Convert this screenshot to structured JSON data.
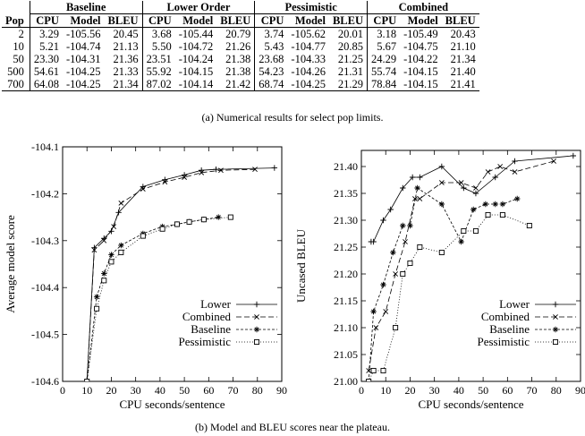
{
  "table": {
    "groups": [
      "Baseline",
      "Lower Order",
      "Pessimistic",
      "Combined"
    ],
    "pop_header": "Pop",
    "sub_headers": [
      "CPU",
      "Model",
      "BLEU"
    ],
    "rows": [
      {
        "pop": "2",
        "cells": [
          "3.29",
          "-105.56",
          "20.45",
          "3.68",
          "-105.44",
          "20.79",
          "3.74",
          "-105.62",
          "20.01",
          "3.18",
          "-105.49",
          "20.43"
        ]
      },
      {
        "pop": "10",
        "cells": [
          "5.21",
          "-104.74",
          "21.13",
          "5.50",
          "-104.72",
          "21.26",
          "5.43",
          "-104.77",
          "20.85",
          "5.67",
          "-104.75",
          "21.10"
        ]
      },
      {
        "pop": "50",
        "cells": [
          "23.30",
          "-104.31",
          "21.36",
          "23.51",
          "-104.24",
          "21.38",
          "23.68",
          "-104.33",
          "21.25",
          "24.29",
          "-104.22",
          "21.34"
        ]
      },
      {
        "pop": "500",
        "cells": [
          "54.61",
          "-104.25",
          "21.33",
          "55.92",
          "-104.15",
          "21.38",
          "54.23",
          "-104.26",
          "21.31",
          "55.74",
          "-104.15",
          "21.40"
        ]
      },
      {
        "pop": "700",
        "cells": [
          "64.08",
          "-104.25",
          "21.34",
          "87.02",
          "-104.14",
          "21.42",
          "68.74",
          "-104.25",
          "21.29",
          "78.84",
          "-104.15",
          "21.41"
        ]
      }
    ]
  },
  "caption_a": "(a) Numerical results for select pop limits.",
  "caption_b": "(b) Model and BLEU scores near the plateau.",
  "chart_data": [
    {
      "type": "line",
      "xlabel": "CPU seconds/sentence",
      "ylabel": "Average model score",
      "xlim": [
        0,
        90
      ],
      "ylim": [
        -104.6,
        -104.1
      ],
      "xticks": [
        0,
        10,
        20,
        30,
        40,
        50,
        60,
        70,
        80,
        90
      ],
      "yticks": [
        -104.6,
        -104.5,
        -104.4,
        -104.3,
        -104.2,
        -104.1
      ],
      "legend_position": "bottom-right",
      "series": [
        {
          "name": "Lower",
          "marker": "plus",
          "dash": "",
          "points": [
            [
              10,
              -104.6
            ],
            [
              13,
              -104.315
            ],
            [
              17,
              -104.295
            ],
            [
              20,
              -104.28
            ],
            [
              23,
              -104.24
            ],
            [
              33,
              -104.185
            ],
            [
              42,
              -104.17
            ],
            [
              50,
              -104.16
            ],
            [
              57,
              -104.15
            ],
            [
              63,
              -104.148
            ],
            [
              87,
              -104.145
            ]
          ]
        },
        {
          "name": "Combined",
          "marker": "x",
          "dash": "6,3",
          "points": [
            [
              10,
              -104.6
            ],
            [
              13,
              -104.32
            ],
            [
              17,
              -104.3
            ],
            [
              21,
              -104.27
            ],
            [
              24,
              -104.22
            ],
            [
              33,
              -104.19
            ],
            [
              42,
              -104.175
            ],
            [
              50,
              -104.165
            ],
            [
              57,
              -104.155
            ],
            [
              65,
              -104.15
            ],
            [
              79,
              -104.148
            ]
          ]
        },
        {
          "name": "Baseline",
          "marker": "star",
          "dash": "3,2",
          "points": [
            [
              10,
              -104.6
            ],
            [
              14,
              -104.42
            ],
            [
              17,
              -104.37
            ],
            [
              20,
              -104.33
            ],
            [
              24,
              -104.31
            ],
            [
              33,
              -104.285
            ],
            [
              41,
              -104.27
            ],
            [
              47,
              -104.265
            ],
            [
              52,
              -104.26
            ],
            [
              58,
              -104.255
            ],
            [
              64,
              -104.25
            ]
          ]
        },
        {
          "name": "Pessimistic",
          "marker": "square",
          "dash": "1,2",
          "points": [
            [
              10,
              -104.6
            ],
            [
              14,
              -104.445
            ],
            [
              17,
              -104.385
            ],
            [
              20,
              -104.345
            ],
            [
              24,
              -104.325
            ],
            [
              33,
              -104.29
            ],
            [
              41,
              -104.275
            ],
            [
              47,
              -104.265
            ],
            [
              52,
              -104.26
            ],
            [
              58,
              -104.255
            ],
            [
              69,
              -104.25
            ]
          ]
        }
      ]
    },
    {
      "type": "line",
      "xlabel": "CPU seconds/sentence",
      "ylabel": "Uncased BLEU",
      "xlim": [
        0,
        90
      ],
      "ylim": [
        21,
        21.43
      ],
      "xticks": [
        0,
        10,
        20,
        30,
        40,
        50,
        60,
        70,
        80,
        90
      ],
      "yticks": [
        21,
        21.05,
        21.1,
        21.15,
        21.2,
        21.25,
        21.3,
        21.35,
        21.4
      ],
      "legend_position": "bottom-right",
      "series": [
        {
          "name": "Lower",
          "marker": "plus",
          "dash": "",
          "points": [
            [
              4,
              21.26
            ],
            [
              5,
              21.26
            ],
            [
              9,
              21.3
            ],
            [
              12,
              21.32
            ],
            [
              17,
              21.36
            ],
            [
              21,
              21.38
            ],
            [
              24,
              21.38
            ],
            [
              33,
              21.4
            ],
            [
              42,
              21.36
            ],
            [
              47,
              21.35
            ],
            [
              55,
              21.38
            ],
            [
              63,
              21.41
            ],
            [
              87,
              21.42
            ]
          ]
        },
        {
          "name": "Combined",
          "marker": "x",
          "dash": "6,3",
          "points": [
            [
              3,
              21.02
            ],
            [
              6,
              21.1
            ],
            [
              10,
              21.13
            ],
            [
              14,
              21.2
            ],
            [
              18,
              21.26
            ],
            [
              22,
              21.34
            ],
            [
              24,
              21.34
            ],
            [
              33,
              21.37
            ],
            [
              41,
              21.37
            ],
            [
              47,
              21.36
            ],
            [
              52,
              21.39
            ],
            [
              57,
              21.4
            ],
            [
              63,
              21.39
            ],
            [
              79,
              21.41
            ]
          ]
        },
        {
          "name": "Baseline",
          "marker": "star",
          "dash": "3,2",
          "points": [
            [
              3,
              21.0
            ],
            [
              5,
              21.13
            ],
            [
              9,
              21.18
            ],
            [
              13,
              21.24
            ],
            [
              17,
              21.29
            ],
            [
              20,
              21.29
            ],
            [
              23,
              21.36
            ],
            [
              33,
              21.33
            ],
            [
              41,
              21.26
            ],
            [
              46,
              21.32
            ],
            [
              51,
              21.33
            ],
            [
              55,
              21.33
            ],
            [
              58,
              21.33
            ],
            [
              64,
              21.34
            ]
          ]
        },
        {
          "name": "Pessimistic",
          "marker": "square",
          "dash": "1,2",
          "points": [
            [
              3,
              21.0
            ],
            [
              5,
              21.02
            ],
            [
              9,
              21.02
            ],
            [
              14,
              21.1
            ],
            [
              17,
              21.2
            ],
            [
              20,
              21.22
            ],
            [
              24,
              21.25
            ],
            [
              33,
              21.24
            ],
            [
              42,
              21.28
            ],
            [
              47,
              21.28
            ],
            [
              52,
              21.31
            ],
            [
              58,
              21.31
            ],
            [
              69,
              21.29
            ]
          ]
        }
      ]
    }
  ]
}
